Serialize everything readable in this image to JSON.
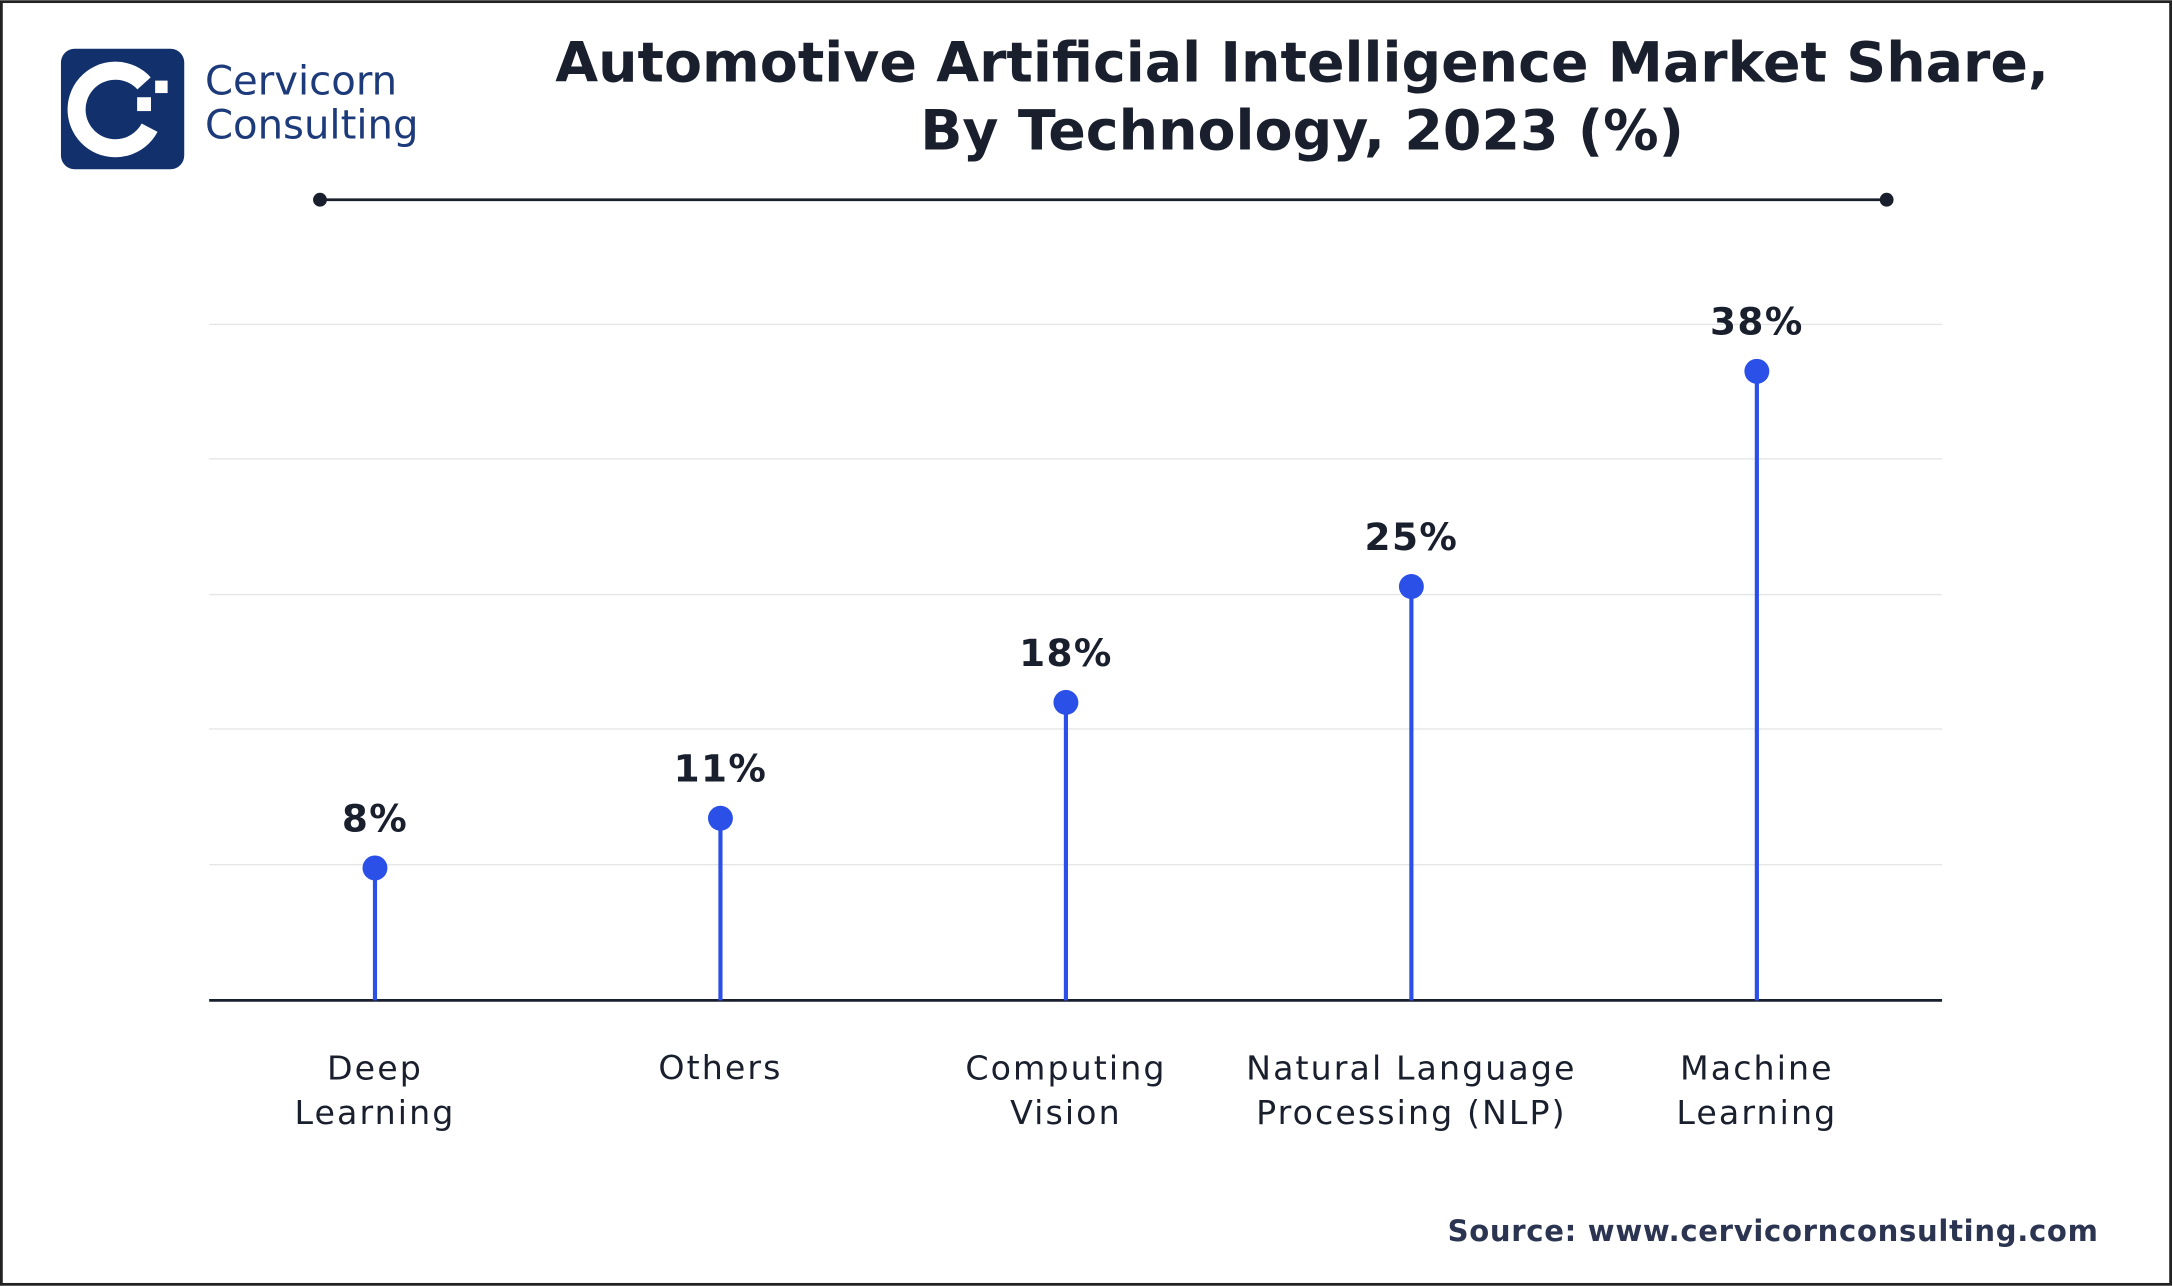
{
  "brand": "Cervicorn\nConsulting",
  "chart_data": {
    "type": "lollipop",
    "title": "Automotive Artificial Intelligence Market Share,\nBy Technology, 2023 (%)",
    "categories": [
      "Deep\nLearning",
      "Others",
      "Computing\nVision",
      "Natural Language\nProcessing (NLP)",
      "Machine\nLearning"
    ],
    "values": [
      8,
      11,
      18,
      25,
      38
    ],
    "value_labels": [
      "8%",
      "11%",
      "18%",
      "25%",
      "38%"
    ],
    "color": "#2b50e8",
    "ylim": [
      0,
      41
    ],
    "source": "Source: www.cervicornconsulting.com"
  }
}
